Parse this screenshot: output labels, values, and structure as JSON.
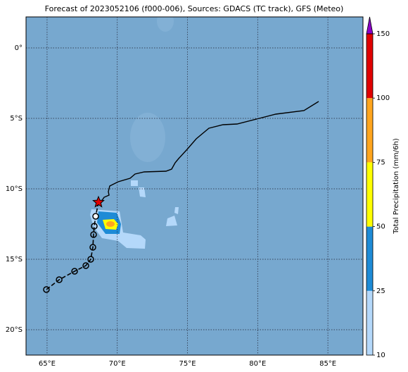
{
  "chart_data": {
    "type": "map",
    "title": "Forecast of 2023052106 (f000-006), Sources: GDACS (TC track), GFS (Meteo)",
    "xlim": [
      63.5,
      87.5
    ],
    "ylim": [
      -21.8,
      2.2
    ],
    "xticks": [
      {
        "value": 65,
        "label": "65°E"
      },
      {
        "value": 70,
        "label": "70°E"
      },
      {
        "value": 75,
        "label": "75°E"
      },
      {
        "value": 80,
        "label": "80°E"
      },
      {
        "value": 85,
        "label": "85°E"
      }
    ],
    "yticks": [
      {
        "value": 0,
        "label": "0°"
      },
      {
        "value": -5,
        "label": "5°S"
      },
      {
        "value": -10,
        "label": "10°S"
      },
      {
        "value": -15,
        "label": "15°S"
      },
      {
        "value": -20,
        "label": "20°S"
      }
    ],
    "grid": true,
    "track": {
      "lon": [
        68.66,
        68.46,
        68.36,
        68.31,
        68.26,
        68.11,
        67.76,
        66.96,
        65.86,
        64.95
      ],
      "lat": [
        -10.95,
        -11.95,
        -12.65,
        -13.25,
        -14.15,
        -15.0,
        -15.45,
        -15.85,
        -16.45,
        -17.15
      ]
    },
    "colorbar": {
      "label": "Total Precipitation (mm/6h)",
      "ticks": [
        10,
        25,
        50,
        75,
        100,
        150
      ],
      "colors": [
        "#b4d8fa",
        "#1e8bd6",
        "#ffff00",
        "#ffa51e",
        "#e00000"
      ],
      "extend_color": "#8c00c8"
    }
  }
}
